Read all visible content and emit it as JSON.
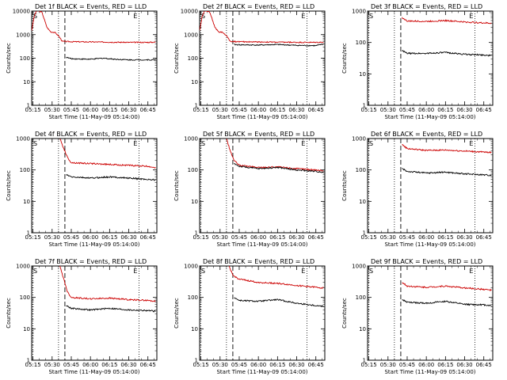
{
  "figure": {
    "xtick_labels": [
      "05:15",
      "05:30",
      "05:45",
      "06:00",
      "06:15",
      "06:30",
      "06:45"
    ],
    "ytick_labels": [
      "1",
      "10",
      "100",
      "1000",
      "10000"
    ],
    "ylabel": "Counts/sec",
    "xlabel": "Start Time (11-May-09 05:14:00)",
    "marker_s": "S",
    "marker_e": "E"
  },
  "chart_data": [
    {
      "type": "line",
      "title": "Det 1f BLACK = Events, RED = LLD",
      "xlabel": "Start Time (11-May-09 05:14:00)",
      "ylabel": "Counts/sec",
      "y_scale": "log",
      "ylim": [
        1,
        10000
      ],
      "xlim": [
        "05:14",
        "06:52"
      ],
      "y_top_tick": "10000",
      "vlines": {
        "dotted": [
          "05:15",
          "05:35",
          "06:38"
        ],
        "dashed": "05:40"
      },
      "series": [
        {
          "color": "#cc0000",
          "start": "05:14",
          "x": [
            "05:14",
            "05:16",
            "05:18",
            "05:22",
            "05:26",
            "05:29",
            "05:32",
            "05:35",
            "05:38",
            "05:45",
            "06:00",
            "06:15",
            "06:30",
            "06:45",
            "06:51"
          ],
          "y": [
            1500,
            6000,
            11000,
            9000,
            2000,
            1300,
            1250,
            900,
            520,
            500,
            490,
            480,
            470,
            470,
            480
          ]
        },
        {
          "color": "#000000",
          "start": "05:41",
          "x": [
            "05:41",
            "05:45",
            "06:00",
            "06:10",
            "06:20",
            "06:30",
            "06:40",
            "06:51"
          ],
          "y": [
            110,
            95,
            90,
            100,
            90,
            85,
            85,
            85
          ]
        }
      ]
    },
    {
      "type": "line",
      "title": "Det 2f BLACK = Events, RED = LLD",
      "xlabel": "Start Time (11-May-09 05:14:00)",
      "ylabel": "Counts/sec",
      "y_scale": "log",
      "ylim": [
        1,
        10000
      ],
      "xlim": [
        "05:14",
        "06:52"
      ],
      "y_top_tick": "10000",
      "vlines": {
        "dotted": [
          "05:15",
          "05:35",
          "06:38"
        ],
        "dashed": "05:40"
      },
      "series": [
        {
          "color": "#cc0000",
          "start": "05:14",
          "x": [
            "05:14",
            "05:16",
            "05:18",
            "05:22",
            "05:26",
            "05:29",
            "05:32",
            "05:35",
            "05:38",
            "05:45",
            "06:00",
            "06:15",
            "06:30",
            "06:45",
            "06:51"
          ],
          "y": [
            1500,
            6000,
            11000,
            9000,
            2000,
            1300,
            1250,
            900,
            520,
            500,
            490,
            480,
            470,
            470,
            480
          ]
        },
        {
          "color": "#000000",
          "start": "05:41",
          "x": [
            "05:41",
            "05:45",
            "06:00",
            "06:15",
            "06:30",
            "06:45",
            "06:51"
          ],
          "y": [
            380,
            370,
            360,
            380,
            350,
            340,
            400
          ]
        }
      ]
    },
    {
      "type": "line",
      "title": "Det 3f BLACK = Events, RED = LLD",
      "xlabel": "Start Time (11-May-09 05:14:00)",
      "ylabel": "Counts/sec",
      "y_scale": "log",
      "ylim": [
        1,
        1000
      ],
      "xlim": [
        "05:14",
        "06:52"
      ],
      "y_top_tick": "1000",
      "vlines": {
        "dotted": [
          "05:15",
          "05:35",
          "06:38"
        ],
        "dashed": "05:40"
      },
      "series": [
        {
          "color": "#cc0000",
          "start": "05:41",
          "x": [
            "05:41",
            "05:45",
            "06:00",
            "06:15",
            "06:30",
            "06:45",
            "06:51"
          ],
          "y": [
            620,
            480,
            470,
            500,
            450,
            420,
            410
          ]
        },
        {
          "color": "#000000",
          "start": "05:41",
          "x": [
            "05:41",
            "05:45",
            "06:00",
            "06:15",
            "06:30",
            "06:45",
            "06:51"
          ],
          "y": [
            55,
            45,
            45,
            48,
            42,
            40,
            38
          ]
        }
      ]
    },
    {
      "type": "line",
      "title": "Det 4f BLACK = Events, RED = LLD",
      "xlabel": "Start Time (11-May-09 05:14:00)",
      "ylabel": "Counts/sec",
      "y_scale": "log",
      "ylim": [
        1,
        1000
      ],
      "xlim": [
        "05:14",
        "06:52"
      ],
      "y_top_tick": "1000",
      "vlines": {
        "dotted": [
          "05:15",
          "05:35",
          "06:38"
        ],
        "dashed": "05:40"
      },
      "series": [
        {
          "color": "#cc0000",
          "start": "05:36",
          "x": [
            "05:36",
            "05:39",
            "05:42",
            "05:45",
            "06:00",
            "06:15",
            "06:30",
            "06:45",
            "06:51"
          ],
          "y": [
            1000,
            500,
            250,
            170,
            160,
            150,
            140,
            130,
            120
          ]
        },
        {
          "color": "#000000",
          "start": "05:41",
          "x": [
            "05:41",
            "05:45",
            "06:00",
            "06:15",
            "06:30",
            "06:45",
            "06:51"
          ],
          "y": [
            70,
            60,
            55,
            60,
            55,
            50,
            48
          ]
        }
      ]
    },
    {
      "type": "line",
      "title": "Det 5f BLACK = Events, RED = LLD",
      "xlabel": "Start Time (11-May-09 05:14:00)",
      "ylabel": "Counts/sec",
      "y_scale": "log",
      "ylim": [
        1,
        1000
      ],
      "xlim": [
        "05:14",
        "06:52"
      ],
      "y_top_tick": "1000",
      "vlines": {
        "dotted": [
          "05:15",
          "05:35",
          "06:38"
        ],
        "dashed": "05:40"
      },
      "series": [
        {
          "color": "#cc0000",
          "start": "05:35",
          "x": [
            "05:35",
            "05:38",
            "05:41",
            "05:45",
            "06:00",
            "06:15",
            "06:30",
            "06:45",
            "06:51"
          ],
          "y": [
            1000,
            400,
            200,
            140,
            120,
            125,
            110,
            100,
            95
          ]
        },
        {
          "color": "#000000",
          "start": "05:41",
          "x": [
            "05:41",
            "05:45",
            "06:00",
            "06:15",
            "06:30",
            "06:45",
            "06:51"
          ],
          "y": [
            160,
            130,
            110,
            120,
            100,
            90,
            85
          ]
        }
      ]
    },
    {
      "type": "line",
      "title": "Det 6f BLACK = Events, RED = LLD",
      "xlabel": "Start Time (11-May-09 05:14:00)",
      "ylabel": "Counts/sec",
      "y_scale": "log",
      "ylim": [
        1,
        1000
      ],
      "xlim": [
        "05:14",
        "06:52"
      ],
      "y_top_tick": "1000",
      "vlines": {
        "dotted": [
          "05:15",
          "05:35",
          "06:38"
        ],
        "dashed": "05:40"
      },
      "series": [
        {
          "color": "#cc0000",
          "start": "05:41",
          "x": [
            "05:41",
            "05:45",
            "06:00",
            "06:15",
            "06:30",
            "06:45",
            "06:51"
          ],
          "y": [
            650,
            480,
            420,
            430,
            400,
            370,
            360
          ]
        },
        {
          "color": "#000000",
          "start": "05:41",
          "x": [
            "05:41",
            "05:45",
            "06:00",
            "06:15",
            "06:30",
            "06:45",
            "06:51"
          ],
          "y": [
            110,
            90,
            80,
            85,
            75,
            70,
            68
          ]
        }
      ]
    },
    {
      "type": "line",
      "title": "Det 7f BLACK = Events, RED = LLD",
      "xlabel": "Start Time (11-May-09 05:14:00)",
      "ylabel": "Counts/sec",
      "y_scale": "log",
      "ylim": [
        1,
        1000
      ],
      "xlim": [
        "05:14",
        "06:52"
      ],
      "y_top_tick": "1000",
      "vlines": {
        "dotted": [
          "05:15",
          "05:35",
          "06:38"
        ],
        "dashed": "05:40"
      },
      "series": [
        {
          "color": "#cc0000",
          "start": "05:36",
          "x": [
            "05:36",
            "05:39",
            "05:42",
            "05:45",
            "06:00",
            "06:15",
            "06:30",
            "06:45",
            "06:51"
          ],
          "y": [
            1000,
            400,
            150,
            100,
            90,
            95,
            85,
            80,
            75
          ]
        },
        {
          "color": "#000000",
          "start": "05:41",
          "x": [
            "05:41",
            "05:45",
            "06:00",
            "06:15",
            "06:30",
            "06:45",
            "06:51"
          ],
          "y": [
            55,
            45,
            40,
            45,
            40,
            38,
            36
          ]
        }
      ]
    },
    {
      "type": "line",
      "title": "Det 8f BLACK = Events, RED = LLD",
      "xlabel": "Start Time (11-May-09 05:14:00)",
      "ylabel": "Counts/sec",
      "y_scale": "log",
      "ylim": [
        1,
        1000
      ],
      "xlim": [
        "05:14",
        "06:52"
      ],
      "y_top_tick": "1000",
      "vlines": {
        "dotted": [
          "05:15",
          "05:35",
          "06:38"
        ],
        "dashed": "05:40"
      },
      "series": [
        {
          "color": "#cc0000",
          "start": "05:37",
          "x": [
            "05:37",
            "05:40",
            "05:45",
            "06:00",
            "06:15",
            "06:30",
            "06:45",
            "06:51"
          ],
          "y": [
            1000,
            500,
            380,
            300,
            280,
            240,
            210,
            200
          ]
        },
        {
          "color": "#000000",
          "start": "05:41",
          "x": [
            "05:41",
            "05:45",
            "06:00",
            "06:15",
            "06:30",
            "06:45",
            "06:51"
          ],
          "y": [
            100,
            80,
            75,
            85,
            65,
            55,
            52
          ]
        }
      ]
    },
    {
      "type": "line",
      "title": "Det 9f BLACK = Events, RED = LLD",
      "xlabel": "Start Time (11-May-09 05:14:00)",
      "ylabel": "Counts/sec",
      "y_scale": "log",
      "ylim": [
        1,
        1000
      ],
      "xlim": [
        "05:14",
        "06:52"
      ],
      "y_top_tick": "1000",
      "vlines": {
        "dotted": [
          "05:15",
          "05:35",
          "06:38"
        ],
        "dashed": "05:40"
      },
      "series": [
        {
          "color": "#cc0000",
          "start": "05:41",
          "x": [
            "05:41",
            "05:45",
            "06:00",
            "06:15",
            "06:30",
            "06:45",
            "06:51"
          ],
          "y": [
            300,
            230,
            210,
            230,
            200,
            180,
            170
          ]
        },
        {
          "color": "#000000",
          "start": "05:41",
          "x": [
            "05:41",
            "05:45",
            "06:00",
            "06:15",
            "06:30",
            "06:45",
            "06:51"
          ],
          "y": [
            85,
            70,
            65,
            75,
            60,
            58,
            55
          ]
        }
      ]
    }
  ]
}
